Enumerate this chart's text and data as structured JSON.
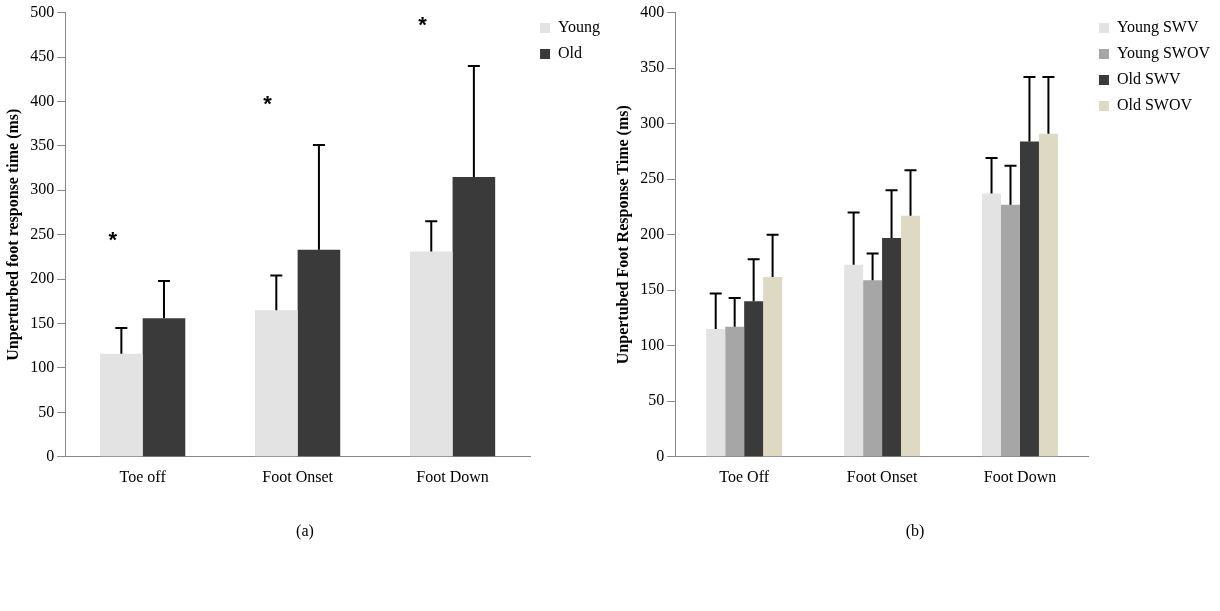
{
  "chart_data": [
    {
      "type": "bar",
      "ylabel": "Unperturbed foot response time (ms)",
      "categories": [
        "Toe off",
        "Foot Onset",
        "Foot Down"
      ],
      "ylim": [
        0,
        500
      ],
      "yticks": [
        0,
        50,
        100,
        150,
        200,
        250,
        300,
        350,
        400,
        450,
        500
      ],
      "grid": false,
      "legend": "top right",
      "series": [
        {
          "name": "Young",
          "color": "#e3e3e3",
          "values": [
            116,
            165,
            231
          ],
          "errors": [
            [
              116,
              145
            ],
            [
              165,
              204
            ],
            [
              231,
              265
            ]
          ]
        },
        {
          "name": "Old",
          "color": "#3a3a3a",
          "values": [
            156,
            233,
            315
          ],
          "errors": [
            [
              156,
              198
            ],
            [
              233,
              351
            ],
            [
              315,
              440
            ]
          ]
        }
      ],
      "annotations": [
        "*",
        "*",
        "*",
        "(a)"
      ]
    },
    {
      "type": "bar",
      "ylabel": "Unpertubed Foot Response Time (ms)",
      "categories": [
        "Toe Off",
        "Foot Onset",
        "Foot Down"
      ],
      "ylim": [
        0,
        400
      ],
      "yticks": [
        0,
        50,
        100,
        150,
        200,
        250,
        300,
        350,
        400
      ],
      "grid": false,
      "legend": "top right",
      "series": [
        {
          "name": "Young SWV",
          "color": "#e3e3e3",
          "values": [
            115,
            173,
            237
          ],
          "errors": [
            [
              115,
              147
            ],
            [
              173,
              220
            ],
            [
              237,
              269
            ]
          ]
        },
        {
          "name": "Young SWOV",
          "color": "#a6a6a6",
          "values": [
            117,
            159,
            227
          ],
          "errors": [
            [
              117,
              143
            ],
            [
              159,
              183
            ],
            [
              227,
              262
            ]
          ]
        },
        {
          "name": "Old SWV",
          "color": "#3a3a3a",
          "values": [
            140,
            197,
            284
          ],
          "errors": [
            [
              140,
              178
            ],
            [
              197,
              240
            ],
            [
              284,
              342
            ]
          ]
        },
        {
          "name": "Old SWOV",
          "color": "#ddd9c3",
          "values": [
            162,
            217,
            291
          ],
          "errors": [
            [
              162,
              200
            ],
            [
              217,
              258
            ],
            [
              291,
              342
            ]
          ]
        }
      ],
      "annotations": [
        "(b)"
      ]
    }
  ]
}
